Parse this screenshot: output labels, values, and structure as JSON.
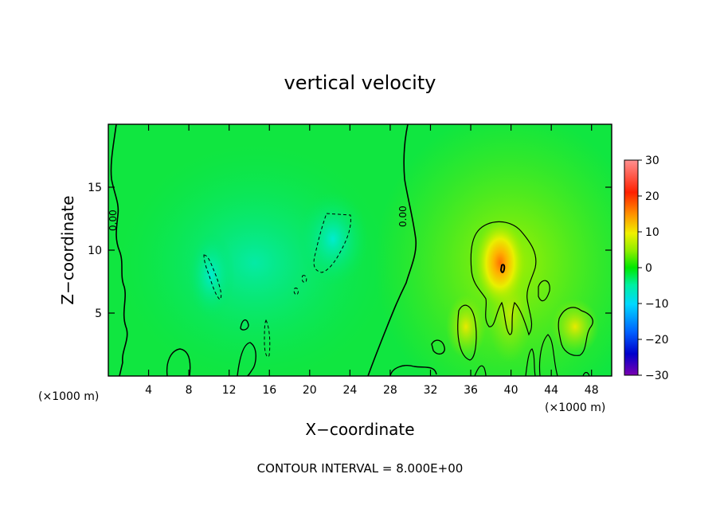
{
  "chart_data": {
    "type": "heatmap",
    "title": "vertical velocity",
    "xlabel": "X−coordinate",
    "ylabel": "Z−coordinate",
    "x_unit_left": "(×1000 m)",
    "x_unit_right": "(×1000 m)",
    "xlim": [
      0,
      50
    ],
    "ylim": [
      0,
      20
    ],
    "xticks": [
      "4",
      "8",
      "12",
      "16",
      "20",
      "24",
      "28",
      "32",
      "36",
      "40",
      "44",
      "48"
    ],
    "xtick_values": [
      4,
      8,
      12,
      16,
      20,
      24,
      28,
      32,
      36,
      40,
      44,
      48
    ],
    "yticks": [
      "5",
      "10",
      "15"
    ],
    "ytick_values": [
      5,
      10,
      15
    ],
    "colorbar": {
      "min": -30,
      "max": 30,
      "ticks": [
        "30",
        "20",
        "10",
        "0",
        "−10",
        "−20",
        "−30"
      ],
      "tick_values": [
        30,
        20,
        10,
        0,
        -10,
        -20,
        -30
      ],
      "colors": [
        "#7a00b0",
        "#0000cc",
        "#0060ff",
        "#00d8ff",
        "#00f0a0",
        "#00e800",
        "#90ee00",
        "#f0f000",
        "#ff9000",
        "#ff2000",
        "#ff9090"
      ]
    },
    "contour_labels": [
      "0.00",
      "0.00"
    ],
    "footnote": "CONTOUR INTERVAL = 8.000E+00",
    "features": [
      {
        "x": 39,
        "z": 8.5,
        "w": 26,
        "note": "updraft maximum"
      },
      {
        "x": 22,
        "z": 11,
        "w": -8,
        "note": "downdraft region"
      },
      {
        "x": 10.5,
        "z": 8,
        "w": -8,
        "note": "downdraft region"
      }
    ]
  }
}
